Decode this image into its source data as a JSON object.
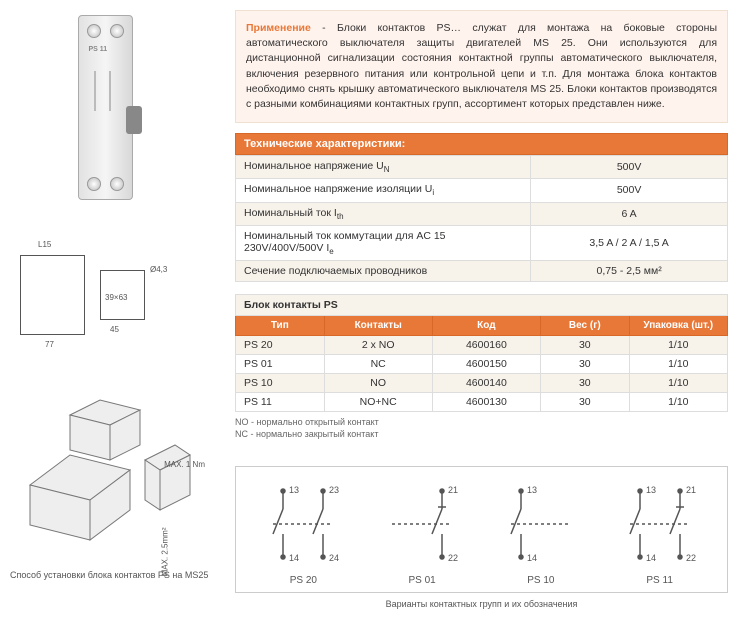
{
  "description": {
    "label": "Применение",
    "sep": " - ",
    "text": "Блоки контактов PS… служат для монтажа на боковые стороны автоматического выключателя защиты двигателей MS 25. Они используются для дистанционной сигнализации состояния контактной группы автоматического выключателя, включения резервного питания или контрольной цепи и т.п. Для монтажа блока контактов необходимо снять крышку автоматического выключателя MS 25. Блоки контактов производятся с разными комбинациями контактных групп, ассортимент которых представлен ниже."
  },
  "specs": {
    "header": "Технические характеристики:",
    "header_bg": "#e87838",
    "header_color": "#ffffff",
    "row_alt_bg": "#f7f2ea",
    "border_color": "#dddddd",
    "rows": [
      {
        "label": "Номинальное напряжение U",
        "sub": "N",
        "value": "500V"
      },
      {
        "label": "Номинальное напряжение изоляции U",
        "sub": "i",
        "value": "500V"
      },
      {
        "label": "Номинальный ток I",
        "sub": "th",
        "value": "6 A"
      },
      {
        "label": "Номинальный ток коммутации для AC 15 230V/400V/500V I",
        "sub": "e",
        "value": "3,5 A / 2 A / 1,5 A"
      },
      {
        "label": "Сечение подключаемых проводников",
        "sub": "",
        "value": "0,75 - 2,5 мм²"
      }
    ]
  },
  "block": {
    "title": "Блок контакты PS",
    "headers": [
      "Тип",
      "Контакты",
      "Код",
      "Вес (г)",
      "Упаковка (шт.)"
    ],
    "col_widths": [
      "18%",
      "22%",
      "22%",
      "18%",
      "20%"
    ],
    "rows": [
      [
        "PS 20",
        "2 x NO",
        "4600160",
        "30",
        "1/10"
      ],
      [
        "PS 01",
        "NC",
        "4600150",
        "30",
        "1/10"
      ],
      [
        "PS 10",
        "NO",
        "4600140",
        "30",
        "1/10"
      ],
      [
        "PS 11",
        "NO+NC",
        "4600130",
        "30",
        "1/10"
      ]
    ],
    "notes": [
      "NO - нормально открытый контакт",
      "NC - нормально закрытый контакт"
    ]
  },
  "variants": {
    "items": [
      {
        "label": "PS 20",
        "left_top": "13",
        "left_bot": "14",
        "right_top": "23",
        "right_bot": "24",
        "left_type": "no",
        "right_type": "no"
      },
      {
        "label": "PS 01",
        "left_top": "",
        "left_bot": "",
        "right_top": "21",
        "right_bot": "22",
        "left_type": "",
        "right_type": "nc"
      },
      {
        "label": "PS 10",
        "left_top": "13",
        "left_bot": "14",
        "right_top": "",
        "right_bot": "",
        "left_type": "no",
        "right_type": ""
      },
      {
        "label": "PS 11",
        "left_top": "13",
        "left_bot": "14",
        "right_top": "21",
        "right_bot": "22",
        "left_type": "no",
        "right_type": "nc"
      }
    ],
    "caption": "Варианты контактных групп и их обозначения"
  },
  "left": {
    "device_label": "PS 11",
    "dims": {
      "w1": "17",
      "w2": "L15",
      "h1": "77",
      "h2": "45",
      "d1": "Ø4,3",
      "box2": "39×63"
    },
    "iso": {
      "max_torque": "MAX. 1 Nm",
      "wire": "MAX. 2.5mm²"
    },
    "caption": "Способ установки блока контактов PS на MS25"
  },
  "colors": {
    "accent": "#e87838",
    "box_bg": "#fff3ed"
  }
}
